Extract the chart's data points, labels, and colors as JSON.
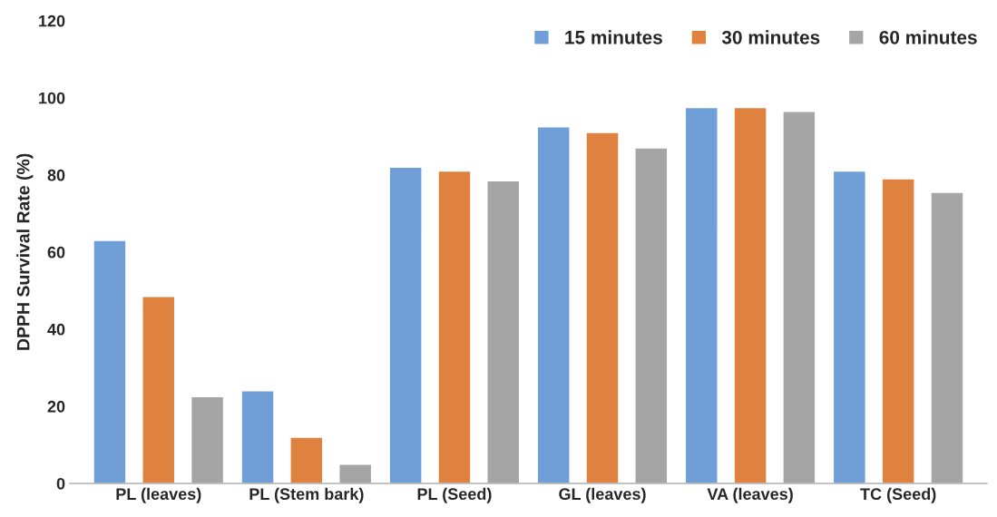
{
  "chart_data": {
    "type": "bar",
    "ylabel": "DPPH Survival Rate (%)",
    "categories": [
      "PL (leaves)",
      "PL (Stem bark)",
      "PL (Seed)",
      "GL (leaves)",
      "VA (leaves)",
      "TC (Seed)"
    ],
    "series": [
      {
        "name": "15 minutes",
        "color": "#6f9fd6",
        "values": [
          63,
          24,
          82,
          92.5,
          97.5,
          81
        ]
      },
      {
        "name": "30 minutes",
        "color": "#e0823f",
        "values": [
          48.5,
          12,
          81,
          91,
          97.5,
          79
        ]
      },
      {
        "name": "60 minutes",
        "color": "#a5a5a5",
        "values": [
          22.5,
          5,
          78.5,
          87,
          96.5,
          75.5
        ]
      }
    ],
    "ylim": [
      0,
      120
    ],
    "yticks": [
      0,
      20,
      40,
      60,
      80,
      100,
      120
    ],
    "grid": false,
    "legend": "top right"
  }
}
